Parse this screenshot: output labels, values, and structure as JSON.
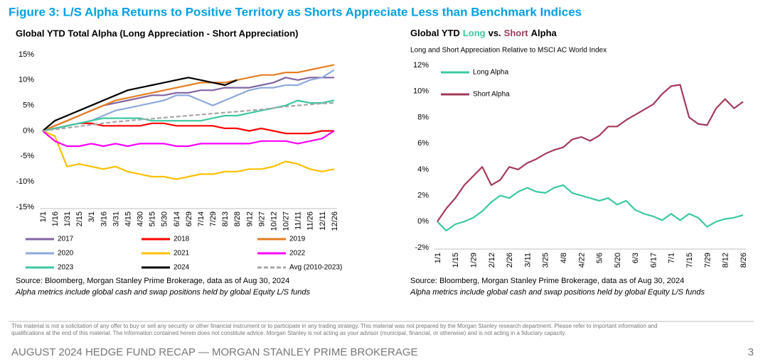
{
  "header": {
    "title": "Figure 3: L/S Alpha Returns to Positive Territory as Shorts Appreciate Less than Benchmark Indices"
  },
  "chart_data": [
    {
      "type": "line",
      "title": "Global YTD Total Alpha (Long Appreciation - Short Appreciation)",
      "categories": [
        "1/1",
        "1/16",
        "1/31",
        "2/15",
        "3/1",
        "3/16",
        "3/31",
        "4/15",
        "4/30",
        "5/15",
        "5/30",
        "6/14",
        "6/29",
        "7/14",
        "7/29",
        "8/13",
        "8/28",
        "9/12",
        "9/27",
        "10/12",
        "10/27",
        "11/11",
        "11/26",
        "12/11",
        "12/26"
      ],
      "series": [
        {
          "name": "2017",
          "color": "#8064a2",
          "values": [
            0,
            1,
            2,
            3,
            4,
            5,
            5.5,
            6,
            6.5,
            7,
            7,
            7.5,
            7.5,
            8,
            8,
            8.5,
            8.5,
            8.5,
            9,
            9.5,
            10.5,
            10,
            10.5,
            10.5,
            10.5
          ]
        },
        {
          "name": "2018",
          "color": "#ff0000",
          "values": [
            0,
            0.5,
            1,
            1.5,
            1.5,
            1,
            1,
            1,
            1,
            1.5,
            1.5,
            1,
            1,
            1,
            1,
            0.5,
            0.5,
            0,
            0.5,
            0,
            -0.5,
            -0.5,
            -0.5,
            0,
            0
          ]
        },
        {
          "name": "2019",
          "color": "#e67e22",
          "values": [
            0,
            1,
            2,
            3,
            4,
            5,
            6,
            6.5,
            7,
            7.5,
            8,
            8.5,
            9,
            9.5,
            9.5,
            9.5,
            10,
            10.5,
            11,
            11,
            11.5,
            11.5,
            12,
            12.5,
            13
          ]
        },
        {
          "name": "2020",
          "color": "#8ea9db",
          "values": [
            0,
            0.5,
            1,
            1.5,
            2,
            3,
            4,
            4.5,
            5,
            5.5,
            6,
            7,
            7,
            6,
            5,
            6,
            7,
            8,
            8.5,
            8.5,
            9,
            9,
            10,
            10.5,
            12
          ]
        },
        {
          "name": "2021",
          "color": "#ffc000",
          "values": [
            0,
            -1,
            -7,
            -6.5,
            -7,
            -7.5,
            -7,
            -8,
            -8.5,
            -9,
            -9,
            -9.5,
            -9,
            -8.5,
            -8.5,
            -8,
            -8,
            -7.5,
            -7.5,
            -7,
            -6,
            -6.5,
            -7.5,
            -8,
            -7.5
          ]
        },
        {
          "name": "2022",
          "color": "#ff00ff",
          "values": [
            0,
            -2,
            -3,
            -3,
            -2.5,
            -3,
            -2.5,
            -3,
            -2.5,
            -2.5,
            -2.5,
            -3,
            -3,
            -2.5,
            -2.5,
            -2.5,
            -2.5,
            -2.5,
            -2,
            -2,
            -2,
            -2.5,
            -2,
            -1.5,
            0
          ]
        },
        {
          "name": "2023",
          "color": "#3cc8a0",
          "values": [
            0,
            0.5,
            1,
            1.5,
            2,
            2.5,
            2.5,
            2.5,
            2.5,
            2,
            2,
            2,
            2,
            2,
            2.5,
            3,
            3,
            3.5,
            4,
            4.5,
            5,
            6,
            5.5,
            5.5,
            6
          ]
        },
        {
          "name": "2024",
          "color": "#000000",
          "values": [
            0,
            2,
            3,
            4,
            5,
            6,
            7,
            8,
            8.5,
            9,
            9.5,
            10,
            10.5,
            10,
            9.5,
            9,
            10,
            null,
            null,
            null,
            null,
            null,
            null,
            null,
            null
          ]
        },
        {
          "name": "Avg (2010-2023)",
          "color": "#a6a6a6",
          "dashed": true,
          "values": [
            0,
            0.3,
            0.6,
            0.9,
            1.2,
            1.5,
            1.8,
            2,
            2.2,
            2.4,
            2.6,
            2.8,
            3,
            3.2,
            3.4,
            3.6,
            3.8,
            4,
            4.2,
            4.5,
            4.8,
            5,
            5.2,
            5.4,
            5.5
          ]
        }
      ],
      "ylim": [
        -15,
        15
      ],
      "yticks": [
        {
          "value": 15,
          "label": "15%"
        },
        {
          "value": 10,
          "label": "10%"
        },
        {
          "value": 5,
          "label": "5%"
        },
        {
          "value": 0,
          "label": "0%"
        },
        {
          "value": -5,
          "label": "-5%"
        },
        {
          "value": -10,
          "label": "-10%"
        },
        {
          "value": -15,
          "label": "-15%"
        }
      ],
      "source": "Source: Bloomberg, Morgan Stanley Prime Brokerage, data as of Aug 30, 2024",
      "note": "Alpha metrics include global cash and swap positions held by global Equity L/S funds"
    },
    {
      "type": "line",
      "title": [
        "Global YTD",
        "Long",
        "vs.",
        "Short",
        "Alpha"
      ],
      "subtitle": "Long and Short Appreciation Relative to MSCI AC World Index",
      "categories": [
        "1/1",
        null,
        "1/15",
        null,
        "1/29",
        null,
        "2/12",
        null,
        "2/26",
        null,
        "3/11",
        null,
        "3/25",
        null,
        "4/8",
        null,
        "4/22",
        null,
        "5/6",
        null,
        "5/20",
        null,
        "6/3",
        null,
        "6/17",
        null,
        "7/1",
        null,
        "7/15",
        null,
        "7/29",
        null,
        "8/12",
        null,
        "8/26"
      ],
      "series": [
        {
          "name": "Long Alpha",
          "color": "#3cc8a0",
          "values": [
            0,
            -0.7,
            -0.2,
            0,
            0.3,
            0.8,
            1.5,
            2,
            1.8,
            2.3,
            2.6,
            2.3,
            2.2,
            2.6,
            2.8,
            2.2,
            2,
            1.8,
            1.6,
            1.8,
            1.3,
            1.6,
            0.9,
            0.6,
            0.4,
            0.1,
            0.6,
            0.1,
            0.6,
            0.3,
            -0.4,
            0,
            0.2,
            0.3,
            0.5
          ]
        },
        {
          "name": "Short Alpha",
          "color": "#a33b5a",
          "values": [
            0,
            1,
            1.8,
            2.8,
            3.5,
            4.2,
            2.8,
            3.2,
            4.2,
            4,
            4.5,
            4.8,
            5.2,
            5.5,
            5.7,
            6.3,
            6.5,
            6.2,
            6.6,
            7.3,
            7.3,
            7.8,
            8.2,
            8.6,
            9,
            9.8,
            10.4,
            10.5,
            8,
            7.5,
            7.4,
            8.7,
            9.4,
            8.7,
            9.2
          ]
        }
      ],
      "ylim": [
        -2,
        12
      ],
      "yticks": [
        {
          "value": 12,
          "label": "12%"
        },
        {
          "value": 10,
          "label": "10%"
        },
        {
          "value": 8,
          "label": "8%"
        },
        {
          "value": 6,
          "label": "6%"
        },
        {
          "value": 4,
          "label": "4%"
        },
        {
          "value": 2,
          "label": "2%"
        },
        {
          "value": 0,
          "label": "0%"
        },
        {
          "value": -2,
          "label": "-2%"
        }
      ],
      "source": "Source: Bloomberg, Morgan Stanley Prime Brokerage, data as of Aug 30, 2024",
      "note": "Alpha metrics include global cash and swap positions held by global Equity L/S funds"
    }
  ],
  "footer": {
    "disclaimer": [
      "This material is not a solicitation of any offer to buy or sell any security or other financial instrument or to participate in any trading strategy. This material was not prepared by the Morgan Stanley research department. Please refer to important information and",
      "qualifications at the end of this material. The information contained herein does not constitute advice. Morgan Stanley is not acting as your advisor (municipal, financial, or otherwise) and is not acting in a fiduciary capacity."
    ],
    "page_title": "AUGUST 2024 HEDGE FUND RECAP — MORGAN STANLEY PRIME BROKERAGE",
    "page_number": "3"
  }
}
